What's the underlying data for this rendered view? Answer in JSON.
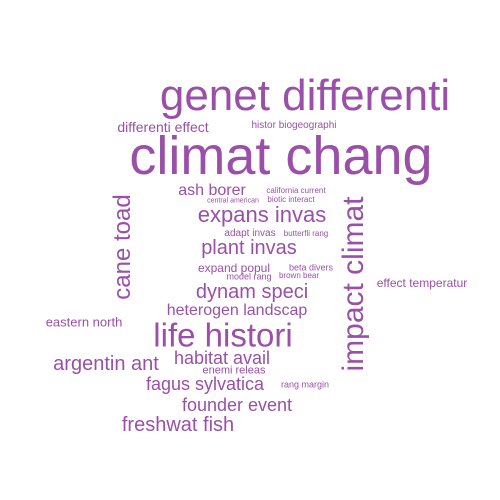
{
  "color": "#9a50a8",
  "words": [
    "genet differenti",
    "climat chang",
    "differenti effect",
    "histor biogeographi",
    "ash borer",
    "california current",
    "central american",
    "biotic interact",
    "expans invas",
    "cane toad",
    "impact climat",
    "adapt invas",
    "butterfli rang",
    "plant invas",
    "expand popul",
    "beta divers",
    "model rang",
    "brown bear",
    "effect temperatur",
    "dynam speci",
    "heterogen landscap",
    "eastern north",
    "life histori",
    "habitat avail",
    "argentin ant",
    "enemi releas",
    "fagus sylvatica",
    "rang margin",
    "founder event",
    "freshwat fish"
  ]
}
